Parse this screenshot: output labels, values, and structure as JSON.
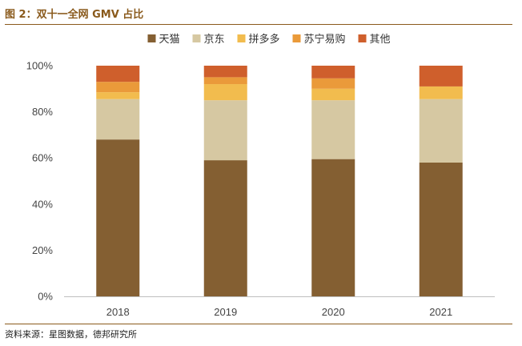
{
  "figure": {
    "title": "图 2：双十一全网 GMV 占比",
    "source": "资料来源：星图数据，德邦研究所"
  },
  "chart_data": {
    "type": "bar",
    "stacked": true,
    "categories": [
      "2018",
      "2019",
      "2020",
      "2021"
    ],
    "series": [
      {
        "name": "天猫",
        "color": "#845F32",
        "values": [
          68,
          59,
          59.5,
          58
        ]
      },
      {
        "name": "京东",
        "color": "#D6C8A2",
        "values": [
          17.5,
          26,
          25.5,
          27.5
        ]
      },
      {
        "name": "拼多多",
        "color": "#F2BC4E",
        "values": [
          3,
          7,
          5,
          5.5
        ]
      },
      {
        "name": "苏宁易购",
        "color": "#EA9A3A",
        "values": [
          4.5,
          3,
          4.5,
          0
        ]
      },
      {
        "name": "其他",
        "color": "#CF5F2C",
        "values": [
          7,
          5,
          5.5,
          9
        ]
      }
    ],
    "ylim": [
      0,
      100
    ],
    "yticks": [
      "0%",
      "20%",
      "40%",
      "60%",
      "80%",
      "100%"
    ],
    "grid": false,
    "legend": "top-center"
  }
}
